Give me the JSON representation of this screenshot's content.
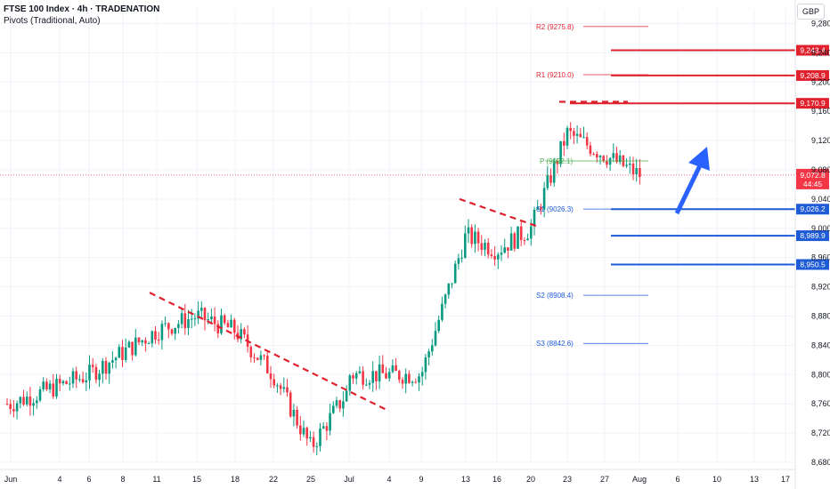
{
  "header": {
    "title": "FTSE 100 Index · 4h · TRADENATION",
    "indicator": "Pivots (Traditional, Auto)"
  },
  "currency": "GBP",
  "countdown": "44:45",
  "colors": {
    "up": "#089981",
    "down": "#f23645",
    "res": "#e0222f",
    "sup": "#1e5bd6",
    "pivot": "#4caf50",
    "arrow": "#2962ff",
    "grid": "#f0f3fa"
  },
  "chart_data": {
    "type": "candlestick",
    "ylim": [
      8680,
      9300
    ],
    "y_ticks": [
      8680,
      8720,
      8760,
      8800,
      8840,
      8880,
      8920,
      8960,
      9000,
      9040,
      9080,
      9120,
      9160,
      9200,
      9240,
      9280
    ],
    "y_tick_labels": [
      "8,680.0",
      "8,720.0",
      "8,760.0",
      "8,800.0",
      "8,840.0",
      "8,880.0",
      "8,920.0",
      "8,960.0",
      "9,000.0",
      "9,040.0",
      "9,080.0",
      "9,120.0",
      "9,160.0",
      "9,200.0",
      "9,240.0",
      "9,280.0"
    ],
    "x_tick_labels": [
      "Jun",
      "4",
      "6",
      "8",
      "11",
      "15",
      "18",
      "22",
      "25",
      "Jul",
      "4",
      "9",
      "13",
      "16",
      "20",
      "23",
      "27",
      "Aug",
      "6",
      "10",
      "13",
      "17"
    ],
    "last_price": 9072.8,
    "last_price_label": "9,072.8",
    "price_labels": [
      {
        "value": 9243.4,
        "text": "9,243.4",
        "kind": "res"
      },
      {
        "value": 9208.9,
        "text": "9,208.9",
        "kind": "res"
      },
      {
        "value": 9170.9,
        "text": "9,170.9",
        "kind": "res"
      },
      {
        "value": 9026.2,
        "text": "9,026.2",
        "kind": "sup"
      },
      {
        "value": 8989.9,
        "text": "8,989.9",
        "kind": "sup"
      },
      {
        "value": 8950.5,
        "text": "8,950.5",
        "kind": "sup"
      }
    ],
    "pivots": [
      {
        "name": "R2",
        "value": 9275.8,
        "label": "R2 (9275.8)"
      },
      {
        "name": "R1",
        "value": 9210.0,
        "label": "R1 (9210.0)"
      },
      {
        "name": "P",
        "value": 9092.1,
        "label": "P (9092.1)"
      },
      {
        "name": "S1",
        "value": 9026.3,
        "label": "S1 (9026.3)"
      },
      {
        "name": "S2",
        "value": 8908.4,
        "label": "S2 (8908.4)"
      },
      {
        "name": "S3",
        "value": 8842.6,
        "label": "S3 (8842.6)"
      }
    ],
    "trendlines": [
      {
        "from": [
          8912,
          "Jun 13"
        ],
        "to": [
          8750,
          "Jul 8"
        ]
      },
      {
        "from": [
          9040,
          "Jul 14"
        ],
        "to": [
          9002,
          "Jul 21"
        ]
      },
      {
        "from": [
          9173,
          "Jul 24"
        ],
        "to": [
          9173,
          "Jul 29"
        ]
      }
    ],
    "anchors": [
      {
        "label": "Jun",
        "price": 8760
      },
      {
        "label": "6",
        "price": 8800
      },
      {
        "label": "11",
        "price": 8860
      },
      {
        "label": "15",
        "price": 8880
      },
      {
        "label": "18",
        "price": 8860
      },
      {
        "label": "22",
        "price": 8800
      },
      {
        "label": "25",
        "price": 8700
      },
      {
        "label": "Jul",
        "price": 8780
      },
      {
        "label": "4",
        "price": 8800
      },
      {
        "label": "9",
        "price": 8800
      },
      {
        "label": "13",
        "price": 8990
      },
      {
        "label": "16",
        "price": 8970
      },
      {
        "label": "20",
        "price": 9000
      },
      {
        "label": "23",
        "price": 9130
      },
      {
        "label": "27",
        "price": 9100
      },
      {
        "label": "Aug",
        "price": 9073
      }
    ]
  }
}
